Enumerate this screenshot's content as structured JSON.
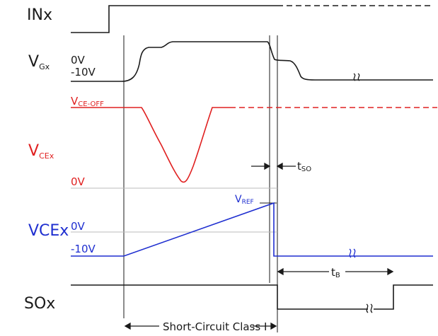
{
  "colors": {
    "black": "#1a1a1a",
    "red": "#e02020",
    "blue": "#1f2fd0"
  },
  "labels": {
    "inx": "INx",
    "vgx_main": "V",
    "vgx_sub": "Gx",
    "vgx_0v": "0V",
    "vgx_m10v": "-10V",
    "vce_off_main": "V",
    "vce_off_sub": "CE-OFF",
    "vcex_main": "V",
    "vcex_sub": "CEx",
    "vcex_0v": "0V",
    "vcex_blue": "VCEx",
    "blue_0v": "0V",
    "blue_m10v": "-10V",
    "vref_main": "V",
    "vref_sub": "REF",
    "tso_main": "t",
    "tso_sub": "SO",
    "tb_main": "t",
    "tb_sub": "B",
    "sox": "SOx",
    "short_circuit": "Short-Circuit Class I"
  }
}
